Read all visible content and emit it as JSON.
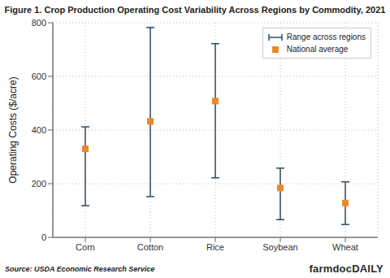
{
  "chart_data": {
    "type": "scatter",
    "title": "Figure 1. Crop Production Operating Cost Variability Across Regions by Commodity, 2021",
    "y_label": "Operating Costs ($/acre)",
    "source": "Source: USDA Economic Research Service",
    "brand": "farmdocDAILY",
    "categories": [
      "Corn",
      "Cotton",
      "Rice",
      "Soybean",
      "Wheat"
    ],
    "series": [
      {
        "name": "National average",
        "color": "#e8892c",
        "marker": "square",
        "values": [
          330,
          432,
          508,
          184,
          128
        ]
      }
    ],
    "range": {
      "name": "Range across regions",
      "color": "#2e4a62",
      "low": [
        118,
        152,
        222,
        66,
        48
      ],
      "high": [
        412,
        782,
        722,
        258,
        207
      ]
    },
    "ylim": [
      0,
      800
    ],
    "yticks": [
      0,
      200,
      400,
      600,
      800
    ],
    "grid": true,
    "legend": "upper right"
  }
}
